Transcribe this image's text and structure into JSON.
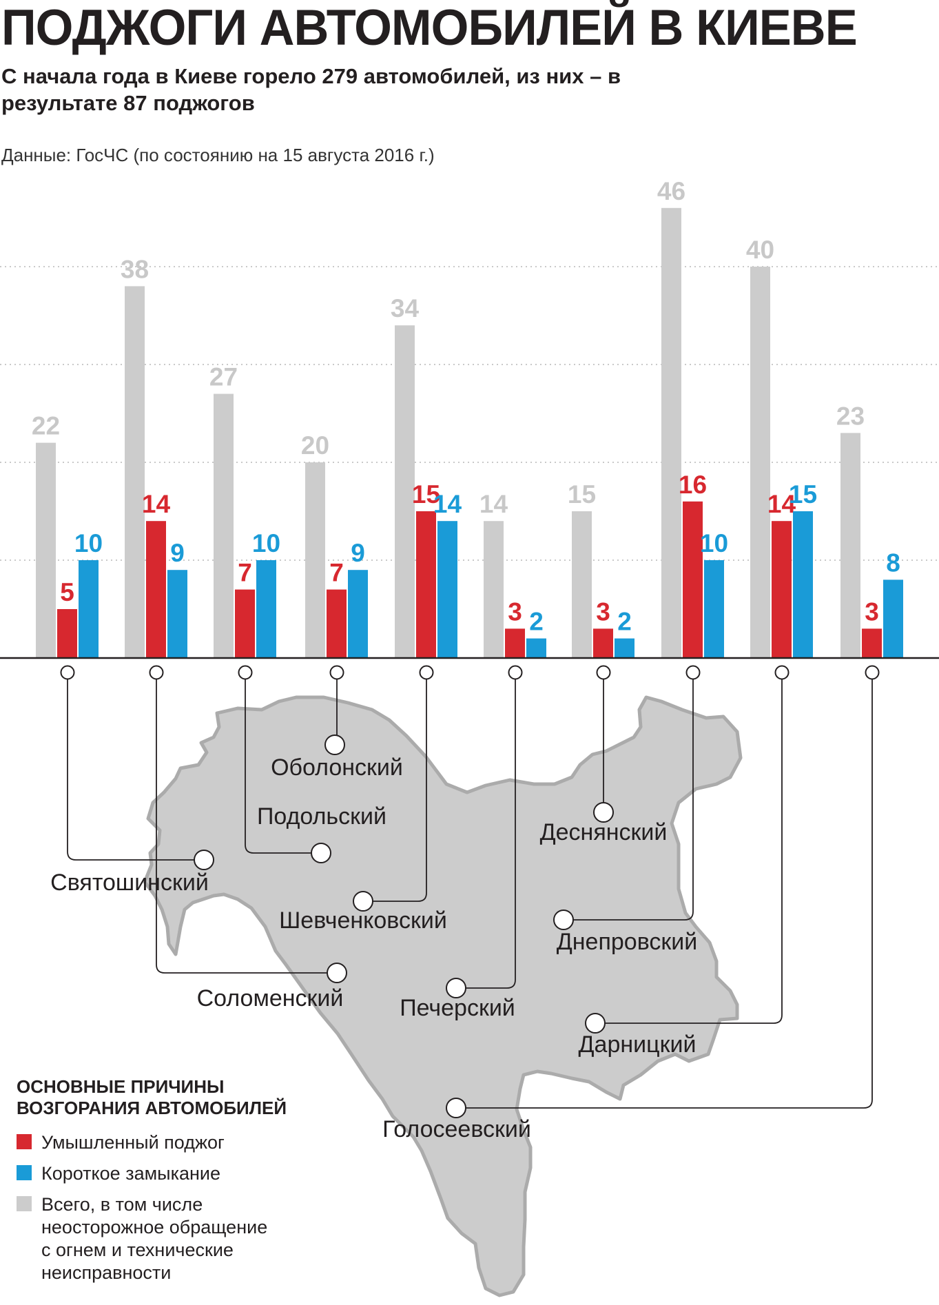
{
  "title": "ПОДЖОГИ АВТОМОБИЛЕЙ В КИЕВЕ",
  "subtitle": "С начала года в Киеве горело 279 автомобилей, из них – в результате 87 поджогов",
  "source": "Данные: ГосЧС (по состоянию на 15 августа 2016 г.)",
  "colors": {
    "total": "#cccccc",
    "arson": "#d7282f",
    "short": "#1a9bd7",
    "map": "#cccccc",
    "line": "#231f20"
  },
  "legend": {
    "title": "ОСНОВНЫЕ ПРИЧИНЫ ВОЗГОРАНИЯ АВТОМОБИЛЕЙ",
    "items": [
      {
        "label": "Умышленный поджог",
        "color": "#d7282f"
      },
      {
        "label": "Короткое замыкание",
        "color": "#1a9bd7"
      },
      {
        "label": "Всего, в том числе неосторожное обращение с огнем и технические неисправности",
        "color": "#cccccc"
      }
    ]
  },
  "chart_data": {
    "type": "bar",
    "categories": [
      "Святошинский",
      "Оболонский",
      "Подольский",
      "Соломенский",
      "Шевченковский",
      "Печерский",
      "Деснянский",
      "Днепровский",
      "Дарницкий",
      "Голосеевский"
    ],
    "series": [
      {
        "name": "Всего, в том числе неосторожное обращение с огнем и технические неисправности",
        "values": [
          22,
          38,
          27,
          20,
          34,
          14,
          15,
          46,
          40,
          23
        ]
      },
      {
        "name": "Умышленный поджог",
        "values": [
          5,
          14,
          7,
          7,
          15,
          3,
          3,
          16,
          14,
          3
        ]
      },
      {
        "name": "Короткое замыкание",
        "values": [
          10,
          9,
          10,
          9,
          14,
          2,
          2,
          10,
          15,
          8
        ]
      }
    ],
    "grid": true,
    "legend_position": "bottom-left"
  }
}
